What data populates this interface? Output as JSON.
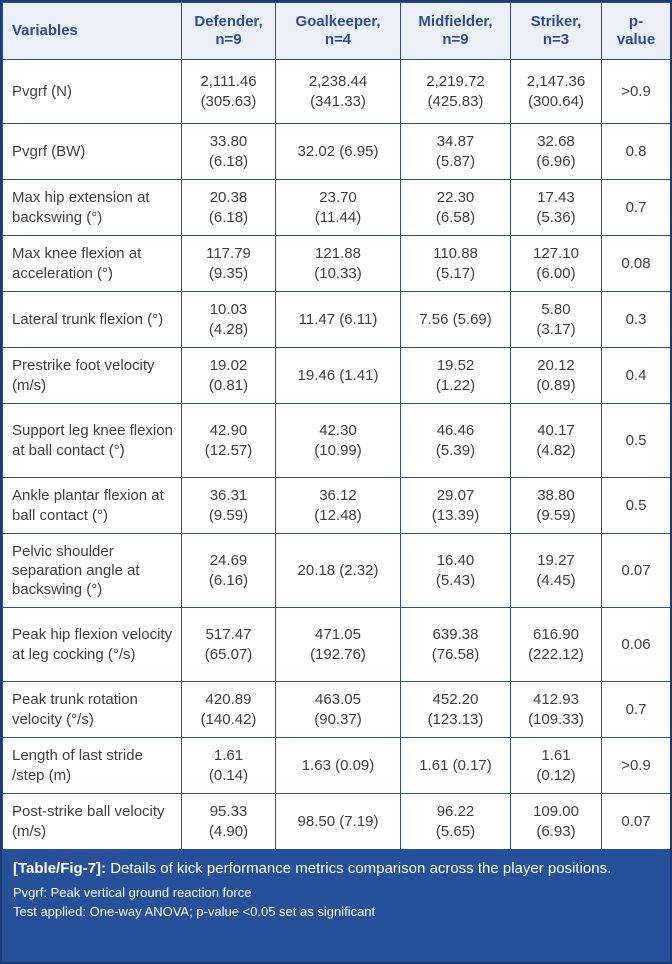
{
  "table": {
    "columns": [
      "Variables",
      "Defender,\nn=9",
      "Goalkeeper,\nn=4",
      "Midfielder,\nn=9",
      "Striker,\nn=3",
      "p-\nvalue"
    ],
    "rows": [
      {
        "variable": "Pvgrf (N)",
        "values": [
          "2,111.46\n(305.63)",
          "2,238.44\n(341.33)",
          "2,219.72\n(425.83)",
          "2,147.36\n(300.64)"
        ],
        "p": ">0.9"
      },
      {
        "variable": "Pvgrf (BW)",
        "values": [
          "33.80\n(6.18)",
          "32.02 (6.95)",
          "34.87\n(5.87)",
          "32.68\n(6.96)"
        ],
        "p": "0.8"
      },
      {
        "variable": "Max hip extension at backswing (°)",
        "values": [
          "20.38\n(6.18)",
          "23.70\n(11.44)",
          "22.30\n(6.58)",
          "17.43\n(5.36)"
        ],
        "p": "0.7"
      },
      {
        "variable": "Max knee flexion at acceleration (°)",
        "values": [
          "117.79\n(9.35)",
          "121.88\n(10.33)",
          "110.88\n(5.17)",
          "127.10\n(6.00)"
        ],
        "p": "0.08"
      },
      {
        "variable": "Lateral trunk flexion (°)",
        "values": [
          "10.03\n(4.28)",
          "11.47 (6.11)",
          "7.56 (5.69)",
          "5.80\n(3.17)"
        ],
        "p": "0.3"
      },
      {
        "variable": "Prestrike foot velocity (m/s)",
        "values": [
          "19.02\n(0.81)",
          "19.46 (1.41)",
          "19.52\n(1.22)",
          "20.12\n(0.89)"
        ],
        "p": "0.4"
      },
      {
        "variable": "Support leg knee flexion at ball contact (°)",
        "values": [
          "42.90\n(12.57)",
          "42.30\n(10.99)",
          "46.46\n(5.39)",
          "40.17\n(4.82)"
        ],
        "p": "0.5"
      },
      {
        "variable": "Ankle plantar flexion at ball contact (°)",
        "values": [
          "36.31\n(9.59)",
          "36.12\n(12.48)",
          "29.07\n(13.39)",
          "38.80\n(9.59)"
        ],
        "p": "0.5"
      },
      {
        "variable": "Pelvic shoulder separation angle at backswing (°)",
        "values": [
          "24.69\n(6.16)",
          "20.18 (2.32)",
          "16.40\n(5.43)",
          "19.27\n(4.45)"
        ],
        "p": "0.07"
      },
      {
        "variable": "Peak hip flexion velocity at leg cocking (°/s)",
        "values": [
          "517.47\n(65.07)",
          "471.05\n(192.76)",
          "639.38\n(76.58)",
          "616.90\n(222.12)"
        ],
        "p": "0.06"
      },
      {
        "variable": "Peak trunk rotation velocity (°/s)",
        "values": [
          "420.89\n(140.42)",
          "463.05\n(90.37)",
          "452.20\n(123.13)",
          "412.93\n(109.33)"
        ],
        "p": "0.7"
      },
      {
        "variable": "Length of last stride /step (m)",
        "values": [
          "1.61\n(0.14)",
          "1.63 (0.09)",
          "1.61 (0.17)",
          "1.61\n(0.12)"
        ],
        "p": ">0.9"
      },
      {
        "variable": "Post-strike ball velocity (m/s)",
        "values": [
          "95.33\n(4.90)",
          "98.50 (7.19)",
          "96.22\n(5.65)",
          "109.00\n(6.93)"
        ],
        "p": "0.07"
      }
    ]
  },
  "footer": {
    "caption_label": "[Table/Fig-7]:",
    "caption_text": "Details of kick performance metrics comparison across the player positions.",
    "note1": "Pvgrf: Peak vertical ground reaction force",
    "note2": "Test applied: One-way ANOVA; p-value <0.05 set as significant"
  },
  "colors": {
    "header_bg": "#edeff7",
    "header_text": "#2c4d9a",
    "grid_line": "#2f4f8f",
    "outer_border": "#1d3a75",
    "body_text": "#3f3f3f",
    "footer_bg": "#27509a",
    "footer_text": "#ffffff"
  }
}
